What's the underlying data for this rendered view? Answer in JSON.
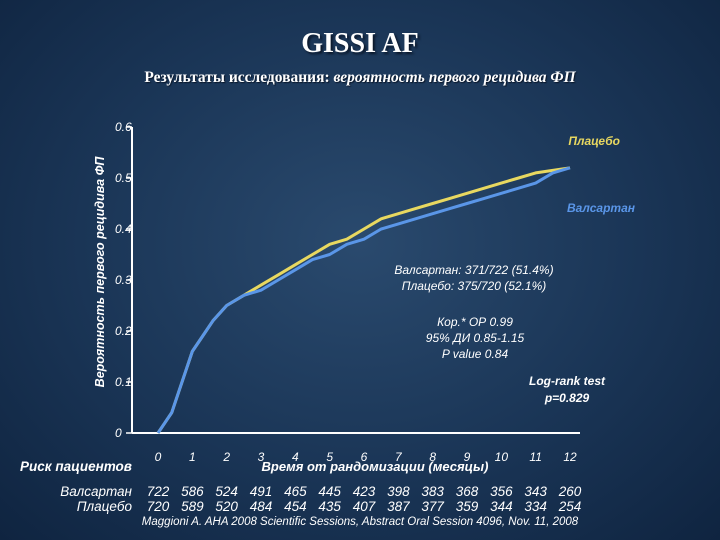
{
  "title": "GISSI AF",
  "subtitle": {
    "bold": "Результаты исследования:",
    "italic": "вероятность первого рецидива ФП"
  },
  "chart_data": {
    "type": "line",
    "title": "GISSI AF",
    "xlabel": "Время от рандомизации (месяцы)",
    "ylabel": "Вероятность первого рецидива ФП",
    "x_ticks": [
      0,
      1,
      2,
      3,
      4,
      5,
      6,
      7,
      8,
      9,
      10,
      11,
      12
    ],
    "y_ticks": [
      "0",
      "0.1",
      "0.2",
      "0.3",
      "0.4",
      "0.5",
      "0.6"
    ],
    "xlim": [
      0,
      12
    ],
    "ylim": [
      0,
      0.6
    ],
    "series": [
      {
        "name": "Плацебо",
        "color": "#e8d860",
        "x": [
          0,
          0.2,
          0.4,
          0.6,
          0.8,
          1.0,
          1.3,
          1.6,
          2.0,
          2.5,
          3.0,
          3.5,
          4.0,
          4.5,
          5.0,
          5.5,
          6.0,
          6.5,
          7.0,
          7.5,
          8.0,
          8.5,
          9.0,
          9.5,
          10.0,
          10.5,
          11.0,
          11.5,
          12.0
        ],
        "y": [
          0,
          0.02,
          0.04,
          0.08,
          0.12,
          0.16,
          0.19,
          0.22,
          0.25,
          0.27,
          0.29,
          0.31,
          0.33,
          0.35,
          0.37,
          0.38,
          0.4,
          0.42,
          0.43,
          0.44,
          0.45,
          0.46,
          0.47,
          0.48,
          0.49,
          0.5,
          0.51,
          0.515,
          0.52
        ]
      },
      {
        "name": "Валсартан",
        "color": "#5a96e8",
        "x": [
          0,
          0.2,
          0.4,
          0.6,
          0.8,
          1.0,
          1.3,
          1.6,
          2.0,
          2.5,
          3.0,
          3.5,
          4.0,
          4.5,
          5.0,
          5.5,
          6.0,
          6.5,
          7.0,
          7.5,
          8.0,
          8.5,
          9.0,
          9.5,
          10.0,
          10.5,
          11.0,
          11.5,
          12.0
        ],
        "y": [
          0,
          0.02,
          0.04,
          0.08,
          0.12,
          0.16,
          0.19,
          0.22,
          0.25,
          0.27,
          0.28,
          0.3,
          0.32,
          0.34,
          0.35,
          0.37,
          0.38,
          0.4,
          0.41,
          0.42,
          0.43,
          0.44,
          0.45,
          0.46,
          0.47,
          0.48,
          0.49,
          0.51,
          0.52
        ]
      }
    ],
    "legend": {
      "placebo": "Плацебо",
      "valsartan": "Валсартан"
    },
    "annotations": {
      "counts_1": "Валсартан: 371/722 (51.4%)",
      "counts_2": "Плацебо: 375/720 (52.1%)",
      "hr_1": "Кор.* ОР 0.99",
      "hr_2": "95% ДИ 0.85-1.15",
      "hr_3": "P value 0.84",
      "logrank_1": "Log-rank test",
      "logrank_2": "p=0.829"
    }
  },
  "risk_table": {
    "label": "Риск пациентов",
    "rows": [
      {
        "name": "Валсартан",
        "values": [
          "722",
          "586",
          "524",
          "491",
          "465",
          "445",
          "423",
          "398",
          "383",
          "368",
          "356",
          "343",
          "260"
        ]
      },
      {
        "name": "Плацебо",
        "values": [
          "720",
          "589",
          "520",
          "484",
          "454",
          "435",
          "407",
          "387",
          "377",
          "359",
          "344",
          "334",
          "254"
        ]
      }
    ]
  },
  "citation": "Maggioni A.  AHA 2008 Scientific Sessions, Abstract Oral Session 4096, Nov. 11, 2008"
}
